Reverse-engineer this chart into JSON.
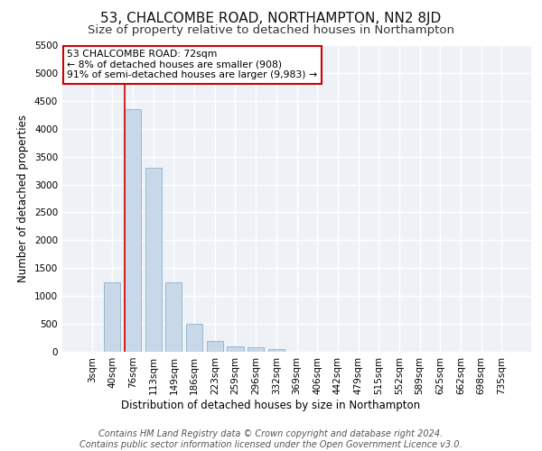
{
  "title": "53, CHALCOMBE ROAD, NORTHAMPTON, NN2 8JD",
  "subtitle": "Size of property relative to detached houses in Northampton",
  "xlabel": "Distribution of detached houses by size in Northampton",
  "ylabel": "Number of detached properties",
  "footer_line1": "Contains HM Land Registry data © Crown copyright and database right 2024.",
  "footer_line2": "Contains public sector information licensed under the Open Government Licence v3.0.",
  "categories": [
    "3sqm",
    "40sqm",
    "76sqm",
    "113sqm",
    "149sqm",
    "186sqm",
    "223sqm",
    "259sqm",
    "296sqm",
    "332sqm",
    "369sqm",
    "406sqm",
    "442sqm",
    "479sqm",
    "515sqm",
    "552sqm",
    "589sqm",
    "625sqm",
    "662sqm",
    "698sqm",
    "735sqm"
  ],
  "values": [
    0,
    1250,
    4350,
    3300,
    1250,
    500,
    200,
    100,
    75,
    50,
    0,
    0,
    0,
    0,
    0,
    0,
    0,
    0,
    0,
    0,
    0
  ],
  "bar_color": "#c8d8e8",
  "bar_edge_color": "#7fa8c8",
  "highlight_bar_index": 2,
  "highlight_line_color": "#cc0000",
  "annotation_text": "53 CHALCOMBE ROAD: 72sqm\n← 8% of detached houses are smaller (908)\n91% of semi-detached houses are larger (9,983) →",
  "annotation_box_color": "#ffffff",
  "annotation_box_edge_color": "#cc0000",
  "ylim": [
    0,
    5500
  ],
  "yticks": [
    0,
    500,
    1000,
    1500,
    2000,
    2500,
    3000,
    3500,
    4000,
    4500,
    5000,
    5500
  ],
  "background_color": "#eef2f7",
  "grid_color": "#ffffff",
  "title_fontsize": 11,
  "subtitle_fontsize": 9.5,
  "axis_label_fontsize": 8.5,
  "tick_fontsize": 7.5,
  "footer_fontsize": 7
}
